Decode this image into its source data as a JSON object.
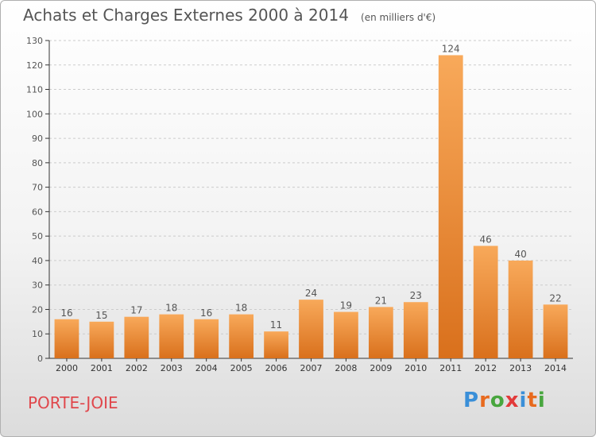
{
  "title": "Achats et Charges Externes 2000 à 2014",
  "subtitle": "(en milliers d'€)",
  "commune": "PORTE-JOIE",
  "logo": {
    "text": "Proxiti",
    "letter_colors": [
      "#3a8fd8",
      "#e86a1e",
      "#48a63e",
      "#e23a3a",
      "#3a8fd8",
      "#e86a1e",
      "#48a63e"
    ]
  },
  "colors": {
    "bar_light": "#f8a95a",
    "bar_dark": "#d9701c",
    "text": "#555555",
    "grid": "#cccccc",
    "commune": "#e0474c"
  },
  "chart_data": {
    "type": "bar",
    "categories": [
      "2000",
      "2001",
      "2002",
      "2003",
      "2004",
      "2005",
      "2006",
      "2007",
      "2008",
      "2009",
      "2010",
      "2011",
      "2012",
      "2013",
      "2014"
    ],
    "values": [
      16,
      15,
      17,
      18,
      16,
      18,
      11,
      24,
      19,
      21,
      23,
      124,
      46,
      40,
      22
    ],
    "ylim": [
      0,
      130
    ],
    "yticks": [
      0,
      10,
      20,
      30,
      40,
      50,
      60,
      70,
      80,
      90,
      100,
      110,
      120,
      130
    ],
    "grid": true,
    "data_labels": true
  }
}
